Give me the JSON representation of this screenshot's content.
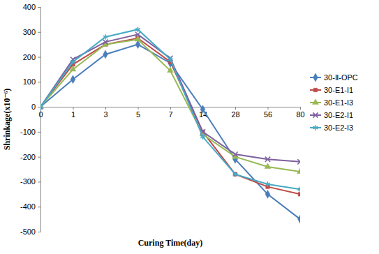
{
  "chart_data": {
    "type": "line",
    "x_label": "Curing Time(day)",
    "y_label": "Shrinkage(x10⁻⁶)",
    "categories": [
      "0",
      "1",
      "3",
      "5",
      "7",
      "14",
      "28",
      "56",
      "80"
    ],
    "series": [
      {
        "name": "30-Ⅱ-OPC",
        "color": "#4a7ebb",
        "marker": "diamond",
        "line_style": "solid",
        "values": [
          0,
          110,
          210,
          250,
          175,
          -10,
          -210,
          -350,
          -450
        ]
      },
      {
        "name": "30-E1-I1",
        "color": "#be4b48",
        "marker": "square",
        "line_style": "solid",
        "values": [
          0,
          170,
          250,
          275,
          180,
          -100,
          -270,
          -320,
          -350
        ]
      },
      {
        "name": "30-E1-I3",
        "color": "#98b954",
        "marker": "triangle",
        "line_style": "solid",
        "values": [
          0,
          150,
          250,
          270,
          145,
          -110,
          -200,
          -240,
          -260
        ]
      },
      {
        "name": "30-E2-I1",
        "color": "#7d60a0",
        "marker": "x",
        "line_style": "solid",
        "values": [
          0,
          190,
          260,
          290,
          195,
          -100,
          -190,
          -210,
          -220
        ]
      },
      {
        "name": "30-E2-I3",
        "color": "#46aac5",
        "marker": "star",
        "line_style": "solid",
        "values": [
          0,
          180,
          280,
          310,
          190,
          -120,
          -270,
          -310,
          -330
        ]
      }
    ],
    "ylim": [
      -500,
      400
    ],
    "yticks": [
      -500,
      -400,
      -300,
      -200,
      -100,
      0,
      100,
      200,
      300,
      400
    ],
    "grid": false,
    "legend": "right"
  }
}
